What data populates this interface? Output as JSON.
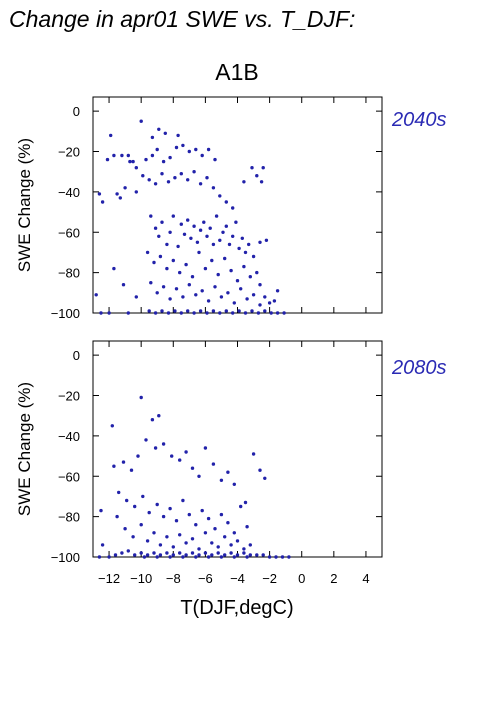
{
  "title": "Change in apr01 SWE vs. T_DJF:",
  "scenario": "A1B",
  "colors": {
    "points": "#2222aa",
    "period_label": "#2a2ab4",
    "frame": "#000000"
  },
  "chart_data": [
    {
      "type": "scatter",
      "panel_label": "2040s",
      "ylabel": "SWE Change (%)",
      "xlabel": "",
      "xlim": [
        -13,
        5
      ],
      "ylim": [
        -100,
        7
      ],
      "x_ticks": [
        -12,
        -10,
        -8,
        -6,
        -4,
        -2,
        0,
        2,
        4
      ],
      "y_ticks": [
        0,
        -20,
        -40,
        -60,
        -80,
        -100
      ],
      "y_tick_labels": [
        "0",
        "−20",
        "−40",
        "−60",
        "−80",
        "−100"
      ],
      "points": [
        [
          -10.0,
          -5
        ],
        [
          -8.9,
          -9
        ],
        [
          -9.3,
          -13
        ],
        [
          -8.5,
          -11
        ],
        [
          -7.7,
          -12
        ],
        [
          -11.9,
          -12
        ],
        [
          -11.7,
          -22
        ],
        [
          -12.1,
          -24
        ],
        [
          -11.2,
          -22
        ],
        [
          -10.8,
          -22
        ],
        [
          -10.5,
          -25
        ],
        [
          -11.0,
          -38
        ],
        [
          -11.5,
          -41
        ],
        [
          -12.6,
          -41
        ],
        [
          -10.3,
          -40
        ],
        [
          -11.3,
          -43
        ],
        [
          -10.7,
          -25
        ],
        [
          -10.3,
          -28
        ],
        [
          -9.7,
          -24
        ],
        [
          -9.3,
          -22
        ],
        [
          -9.0,
          -19
        ],
        [
          -8.6,
          -25
        ],
        [
          -8.2,
          -23
        ],
        [
          -7.8,
          -18
        ],
        [
          -7.4,
          -17
        ],
        [
          -7.0,
          -20
        ],
        [
          -6.6,
          -19
        ],
        [
          -6.2,
          -22
        ],
        [
          -5.8,
          -19
        ],
        [
          -5.4,
          -24
        ],
        [
          -9.9,
          -32
        ],
        [
          -9.5,
          -34
        ],
        [
          -9.1,
          -36
        ],
        [
          -8.7,
          -31
        ],
        [
          -8.3,
          -35
        ],
        [
          -7.9,
          -33
        ],
        [
          -7.5,
          -31
        ],
        [
          -7.1,
          -34
        ],
        [
          -6.7,
          -30
        ],
        [
          -6.3,
          -36
        ],
        [
          -5.9,
          -33
        ],
        [
          -5.5,
          -38
        ],
        [
          -5.1,
          -42
        ],
        [
          -4.7,
          -45
        ],
        [
          -4.3,
          -48
        ],
        [
          -3.1,
          -28
        ],
        [
          -2.8,
          -32
        ],
        [
          -2.5,
          -35
        ],
        [
          -2.4,
          -28
        ],
        [
          -3.6,
          -35
        ],
        [
          -12.4,
          -45
        ],
        [
          -12.8,
          -91
        ],
        [
          -11.7,
          -78
        ],
        [
          -11.1,
          -86
        ],
        [
          -10.3,
          -92
        ],
        [
          -9.4,
          -52
        ],
        [
          -9.1,
          -58
        ],
        [
          -8.9,
          -62
        ],
        [
          -8.7,
          -55
        ],
        [
          -8.4,
          -66
        ],
        [
          -8.2,
          -60
        ],
        [
          -8.0,
          -52
        ],
        [
          -7.7,
          -67
        ],
        [
          -7.5,
          -56
        ],
        [
          -7.3,
          -61
        ],
        [
          -7.1,
          -54
        ],
        [
          -6.9,
          -63
        ],
        [
          -6.7,
          -57
        ],
        [
          -6.5,
          -65
        ],
        [
          -6.3,
          -59
        ],
        [
          -6.1,
          -55
        ],
        [
          -5.9,
          -62
        ],
        [
          -5.7,
          -58
        ],
        [
          -5.5,
          -66
        ],
        [
          -5.3,
          -52
        ],
        [
          -5.1,
          -64
        ],
        [
          -4.9,
          -60
        ],
        [
          -4.7,
          -57
        ],
        [
          -4.5,
          -66
        ],
        [
          -4.3,
          -62
        ],
        [
          -4.1,
          -55
        ],
        [
          -3.9,
          -68
        ],
        [
          -3.7,
          -63
        ],
        [
          -3.5,
          -70
        ],
        [
          -3.3,
          -66
        ],
        [
          -3.0,
          -72
        ],
        [
          -2.6,
          -65
        ],
        [
          -2.2,
          -64
        ],
        [
          -9.6,
          -70
        ],
        [
          -9.2,
          -75
        ],
        [
          -8.8,
          -72
        ],
        [
          -8.4,
          -78
        ],
        [
          -8.0,
          -74
        ],
        [
          -7.6,
          -80
        ],
        [
          -7.2,
          -76
        ],
        [
          -6.8,
          -82
        ],
        [
          -6.4,
          -70
        ],
        [
          -6.0,
          -78
        ],
        [
          -5.6,
          -74
        ],
        [
          -5.2,
          -81
        ],
        [
          -4.8,
          -73
        ],
        [
          -4.4,
          -79
        ],
        [
          -4.0,
          -84
        ],
        [
          -3.6,
          -77
        ],
        [
          -3.2,
          -82
        ],
        [
          -2.8,
          -80
        ],
        [
          -2.6,
          -86
        ],
        [
          -9.4,
          -85
        ],
        [
          -9.0,
          -90
        ],
        [
          -8.6,
          -87
        ],
        [
          -8.2,
          -93
        ],
        [
          -7.8,
          -88
        ],
        [
          -7.4,
          -92
        ],
        [
          -7.0,
          -86
        ],
        [
          -6.6,
          -91
        ],
        [
          -6.2,
          -89
        ],
        [
          -5.8,
          -94
        ],
        [
          -5.4,
          -87
        ],
        [
          -5.0,
          -92
        ],
        [
          -4.6,
          -90
        ],
        [
          -4.2,
          -95
        ],
        [
          -3.8,
          -88
        ],
        [
          -3.4,
          -93
        ],
        [
          -3.0,
          -91
        ],
        [
          -2.6,
          -96
        ],
        [
          -2.3,
          -92
        ],
        [
          -2.0,
          -95
        ],
        [
          -1.7,
          -94
        ],
        [
          -1.5,
          -89
        ],
        [
          -9.5,
          -99
        ],
        [
          -9.1,
          -100
        ],
        [
          -8.7,
          -99
        ],
        [
          -8.3,
          -100
        ],
        [
          -7.9,
          -99
        ],
        [
          -7.5,
          -100
        ],
        [
          -7.1,
          -99
        ],
        [
          -6.7,
          -100
        ],
        [
          -6.3,
          -99
        ],
        [
          -5.9,
          -100
        ],
        [
          -5.5,
          -99
        ],
        [
          -5.1,
          -100
        ],
        [
          -4.7,
          -99
        ],
        [
          -4.3,
          -100
        ],
        [
          -3.9,
          -99
        ],
        [
          -3.5,
          -100
        ],
        [
          -3.1,
          -99
        ],
        [
          -2.7,
          -100
        ],
        [
          -2.3,
          -99
        ],
        [
          -1.9,
          -100
        ],
        [
          -1.5,
          -100
        ],
        [
          -1.1,
          -100
        ],
        [
          -12.5,
          -100
        ],
        [
          -12.0,
          -100
        ],
        [
          -10.8,
          -100
        ]
      ]
    },
    {
      "type": "scatter",
      "panel_label": "2080s",
      "ylabel": "SWE Change (%)",
      "xlabel": "T(DJF,degC)",
      "xlim": [
        -13,
        5
      ],
      "ylim": [
        -100,
        7
      ],
      "x_ticks": [
        -12,
        -10,
        -8,
        -6,
        -4,
        -2,
        0,
        2,
        4
      ],
      "x_tick_labels": [
        "−12",
        "−10",
        "−8",
        "−6",
        "−4",
        "−2",
        "0",
        "2",
        "4"
      ],
      "y_ticks": [
        0,
        -20,
        -40,
        -60,
        -80,
        -100
      ],
      "y_tick_labels": [
        "0",
        "−20",
        "−40",
        "−60",
        "−80",
        "−100"
      ],
      "points": [
        [
          -10.0,
          -21
        ],
        [
          -8.9,
          -30
        ],
        [
          -9.3,
          -32
        ],
        [
          -11.8,
          -35
        ],
        [
          -12.5,
          -77
        ],
        [
          -12.4,
          -94
        ],
        [
          -11.7,
          -55
        ],
        [
          -11.1,
          -53
        ],
        [
          -10.6,
          -57
        ],
        [
          -10.2,
          -50
        ],
        [
          -9.7,
          -42
        ],
        [
          -9.1,
          -46
        ],
        [
          -8.6,
          -44
        ],
        [
          -8.1,
          -50
        ],
        [
          -7.6,
          -52
        ],
        [
          -7.2,
          -48
        ],
        [
          -6.8,
          -56
        ],
        [
          -6.4,
          -60
        ],
        [
          -6.0,
          -46
        ],
        [
          -5.5,
          -54
        ],
        [
          -5.0,
          -62
        ],
        [
          -4.6,
          -58
        ],
        [
          -4.2,
          -64
        ],
        [
          -3.5,
          -73
        ],
        [
          -3.0,
          -49
        ],
        [
          -2.6,
          -57
        ],
        [
          -2.3,
          -61
        ],
        [
          -11.4,
          -68
        ],
        [
          -10.9,
          -72
        ],
        [
          -10.4,
          -75
        ],
        [
          -9.9,
          -70
        ],
        [
          -9.5,
          -78
        ],
        [
          -9.0,
          -74
        ],
        [
          -8.6,
          -80
        ],
        [
          -8.2,
          -76
        ],
        [
          -7.8,
          -82
        ],
        [
          -7.4,
          -72
        ],
        [
          -7.0,
          -79
        ],
        [
          -6.6,
          -84
        ],
        [
          -6.2,
          -77
        ],
        [
          -5.8,
          -81
        ],
        [
          -5.4,
          -86
        ],
        [
          -5.0,
          -79
        ],
        [
          -4.6,
          -83
        ],
        [
          -4.2,
          -88
        ],
        [
          -3.8,
          -75
        ],
        [
          -3.4,
          -85
        ],
        [
          -11.5,
          -80
        ],
        [
          -11.0,
          -86
        ],
        [
          -10.5,
          -90
        ],
        [
          -10.0,
          -84
        ],
        [
          -9.6,
          -92
        ],
        [
          -9.2,
          -88
        ],
        [
          -8.8,
          -94
        ],
        [
          -8.4,
          -90
        ],
        [
          -8.0,
          -95
        ],
        [
          -7.6,
          -89
        ],
        [
          -7.2,
          -93
        ],
        [
          -6.8,
          -91
        ],
        [
          -6.4,
          -96
        ],
        [
          -6.0,
          -88
        ],
        [
          -5.6,
          -93
        ],
        [
          -5.2,
          -95
        ],
        [
          -4.8,
          -90
        ],
        [
          -4.4,
          -94
        ],
        [
          -4.0,
          -92
        ],
        [
          -3.6,
          -96
        ],
        [
          -3.2,
          -94
        ],
        [
          -11.2,
          -98
        ],
        [
          -10.8,
          -97
        ],
        [
          -10.4,
          -99
        ],
        [
          -10.0,
          -98
        ],
        [
          -9.6,
          -99
        ],
        [
          -9.2,
          -98
        ],
        [
          -8.8,
          -99
        ],
        [
          -8.4,
          -98
        ],
        [
          -8.0,
          -99
        ],
        [
          -7.6,
          -98
        ],
        [
          -7.2,
          -99
        ],
        [
          -6.8,
          -98
        ],
        [
          -6.4,
          -99
        ],
        [
          -6.0,
          -98
        ],
        [
          -5.6,
          -99
        ],
        [
          -5.2,
          -98
        ],
        [
          -4.8,
          -99
        ],
        [
          -4.4,
          -98
        ],
        [
          -4.0,
          -99
        ],
        [
          -3.6,
          -98
        ],
        [
          -3.2,
          -99
        ],
        [
          -2.8,
          -99
        ],
        [
          -2.4,
          -99
        ],
        [
          -2.0,
          -100
        ],
        [
          -1.6,
          -100
        ],
        [
          -1.2,
          -100
        ],
        [
          -0.8,
          -100
        ],
        [
          -9.8,
          -100
        ],
        [
          -9.0,
          -100
        ],
        [
          -8.2,
          -100
        ],
        [
          -7.4,
          -100
        ],
        [
          -6.6,
          -100
        ],
        [
          -5.8,
          -100
        ],
        [
          -5.0,
          -100
        ],
        [
          -4.2,
          -100
        ],
        [
          -3.4,
          -100
        ],
        [
          -12.6,
          -100
        ],
        [
          -12.0,
          -100
        ],
        [
          -11.6,
          -99
        ]
      ]
    }
  ]
}
